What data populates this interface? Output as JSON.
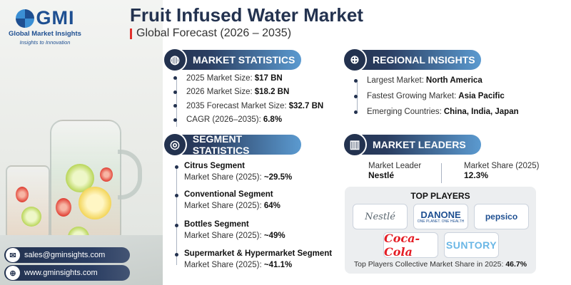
{
  "brand": {
    "logo_text": "GMI",
    "name": "Global Market Insights",
    "tagline": "Insights to Innovation"
  },
  "header": {
    "title": "Fruit Infused Water Market",
    "subtitle": "Global Forecast (2026 – 2035)"
  },
  "market_statistics": {
    "heading": "MARKET STATISTICS",
    "icon": "globe-chart-icon",
    "rows": [
      {
        "label": "2025 Market Size:",
        "value": "$17 BN"
      },
      {
        "label": "2026 Market Size:",
        "value": "$18.2 BN"
      },
      {
        "label": "2035 Forecast Market Size:",
        "value": "$32.7 BN"
      },
      {
        "label": "CAGR (2026–2035):",
        "value": "6.8%"
      }
    ]
  },
  "regional_insights": {
    "heading": "REGIONAL INSIGHTS",
    "icon": "globe-icon",
    "rows": [
      {
        "label": "Largest Market:",
        "value": "North America"
      },
      {
        "label": "Fastest Growing Market:",
        "value": "Asia Pacific"
      },
      {
        "label": "Emerging Countries:",
        "value": "China, India, Japan"
      }
    ]
  },
  "segment_statistics": {
    "heading": "SEGMENT STATISTICS",
    "icon": "target-icon",
    "segments": [
      {
        "name": "Citrus Segment",
        "label": "Market Share (2025):",
        "value": "~29.5%"
      },
      {
        "name": "Conventional Segment",
        "label": "Market Share (2025):",
        "value": "64%"
      },
      {
        "name": "Bottles Segment",
        "label": "Market Share (2025):",
        "value": "~49%"
      },
      {
        "name": "Supermarket & Hypermarket Segment",
        "label": "Market Share (2025):",
        "value": "~41.1%"
      }
    ]
  },
  "market_leaders": {
    "heading": "MARKET LEADERS",
    "icon": "bar-chart-icon",
    "leader_label": "Market Leader",
    "leader_value": "Nestlé",
    "share_label": "Market Share (2025)",
    "share_value": "12.3%"
  },
  "top_players": {
    "heading": "TOP PLAYERS",
    "logos": [
      {
        "name": "Nestlé",
        "color": "#5b6770"
      },
      {
        "name": "DANONE",
        "color": "#1e4f91"
      },
      {
        "name": "pepsico",
        "color": "#1e4f91"
      },
      {
        "name": "Coca-Cola",
        "color": "#e41e26"
      },
      {
        "name": "SUNTORY",
        "color": "#6ab7e6"
      }
    ],
    "danone_tagline": "ONE PLANET. ONE HEALTH",
    "footer_label": "Top Players Collective Market Share in 2025:",
    "footer_value": "46.7%"
  },
  "contact": {
    "email": "sales@gminsights.com",
    "website": "www.gminsights.com"
  },
  "colors": {
    "navy": "#23324f",
    "accent_red": "#e0312c",
    "pill_light": "#5b9ad0"
  }
}
